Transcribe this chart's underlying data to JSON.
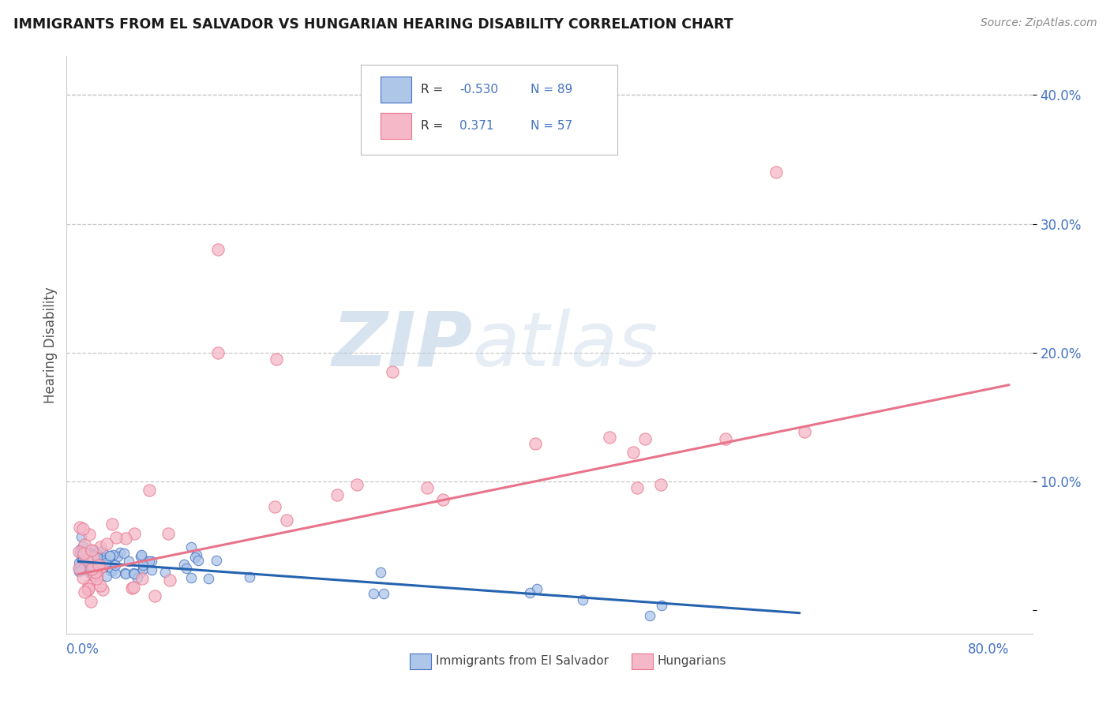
{
  "title": "IMMIGRANTS FROM EL SALVADOR VS HUNGARIAN HEARING DISABILITY CORRELATION CHART",
  "source": "Source: ZipAtlas.com",
  "ylabel": "Hearing Disability",
  "xlim": [
    0,
    0.8
  ],
  "ylim": [
    0,
    0.42
  ],
  "ytick_vals": [
    0.0,
    0.1,
    0.2,
    0.3,
    0.4
  ],
  "ytick_labels": [
    "",
    "10.0%",
    "20.0%",
    "30.0%",
    "40.0%"
  ],
  "background_color": "#ffffff",
  "grid_color": "#c8c8c8",
  "title_color": "#1a1a1a",
  "axis_label_color": "#4472c4",
  "blue_color_face": "#aec6e8",
  "blue_color_edge": "#4472c4",
  "pink_color_face": "#f4b8c8",
  "pink_color_edge": "#e8738a",
  "blue_line_color": "#2563b0",
  "pink_line_color": "#e8738a",
  "watermark_zip": "ZIP",
  "watermark_atlas": "atlas",
  "blue_line_y0": 0.038,
  "blue_line_y1": -0.002,
  "blue_line_x0": 0.0,
  "blue_line_x1": 0.62,
  "pink_line_y0": 0.028,
  "pink_line_y1": 0.175,
  "pink_line_x0": 0.0,
  "pink_line_x1": 0.8
}
